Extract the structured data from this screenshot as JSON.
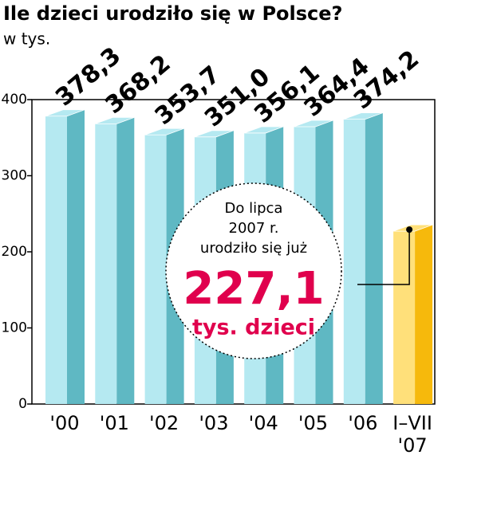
{
  "chart_data": {
    "type": "bar",
    "title": "Ile dzieci urodziło się w Polsce?",
    "subtitle": "w tys.",
    "categories": [
      "'00",
      "'01",
      "'02",
      "'03",
      "'04",
      "'05",
      "'06",
      "I–VII '07"
    ],
    "values": [
      378.3,
      368.2,
      353.7,
      351.0,
      356.1,
      364.4,
      374.2,
      227.1
    ],
    "value_labels": [
      "378,3",
      "368,2",
      "353,7",
      "351,0",
      "356,1",
      "364,4",
      "374,2",
      "227,1"
    ],
    "colors": [
      "#b5e9f1",
      "#b5e9f1",
      "#b5e9f1",
      "#b5e9f1",
      "#b5e9f1",
      "#b5e9f1",
      "#b5e9f1",
      "#ffe07a"
    ],
    "side_colors": [
      "#5fb8c3",
      "#5fb8c3",
      "#5fb8c3",
      "#5fb8c3",
      "#5fb8c3",
      "#5fb8c3",
      "#5fb8c3",
      "#f6b90c"
    ],
    "ylim": [
      0,
      400
    ],
    "yticks": [
      0,
      100,
      200,
      300,
      400
    ],
    "annotation": {
      "lines": [
        "Do lipca",
        "2007 r.",
        "urodziło się już"
      ],
      "unit": "tys. dzieci"
    }
  }
}
